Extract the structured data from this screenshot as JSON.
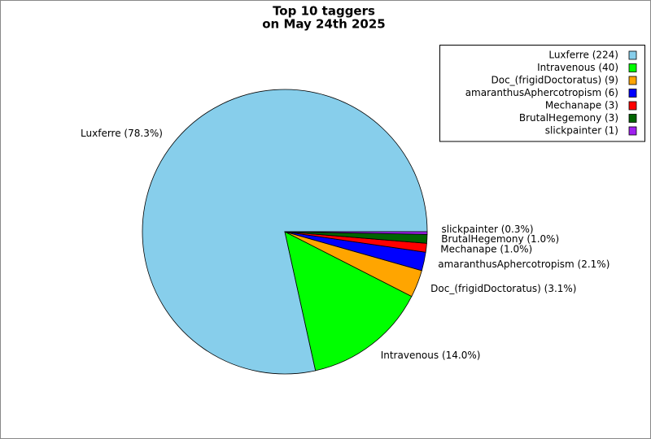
{
  "chart_data": {
    "type": "pie",
    "title": [
      "Top 10 taggers",
      "on May 24th 2025"
    ],
    "categories": [
      "Luxferre (224)",
      "Intravenous (40)",
      "Doc_(frigidDoctoratus) (9)",
      "amaranthusAphercotropism (6)",
      "Mechanape (3)",
      "BrutalHegemony (3)",
      "slickpainter (1)"
    ],
    "values": [
      78.3,
      14.0,
      3.1,
      2.1,
      1.0,
      1.0,
      0.3
    ],
    "value_labels": [
      "Luxferre (78.3%)",
      "Intravenous (14.0%)",
      "Doc_(frigidDoctoratus) (3.1%)",
      "amaranthusAphercotropism (2.1%)",
      "Mechanape (1.0%)",
      "BrutalHegemony (1.0%)",
      "slickpainter (0.3%)"
    ],
    "colors": [
      "#87ceeb",
      "#00ff00",
      "#ffa500",
      "#0000ff",
      "#ff0000",
      "#006400",
      "#a020f0"
    ],
    "legend": "upper right"
  }
}
